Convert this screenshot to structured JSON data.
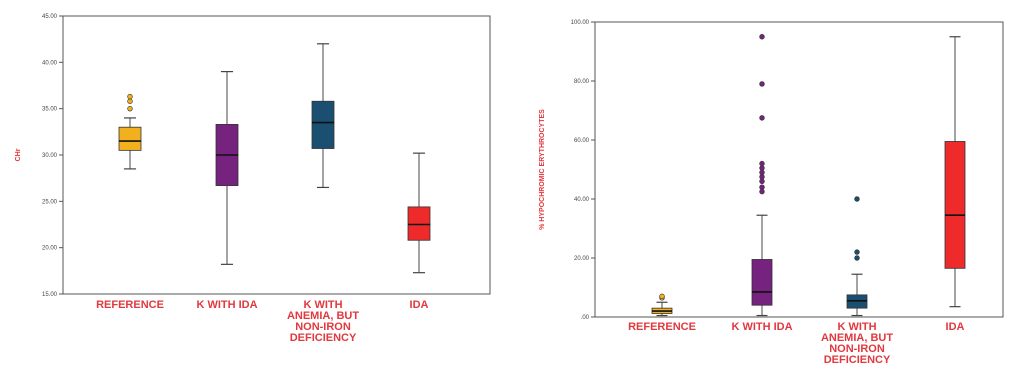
{
  "colors": {
    "reference": "#f2b01e",
    "k_with_ida": "#76227f",
    "k_anemia_non_iron": "#1b4f72",
    "ida": "#ee2a2a",
    "label": "#e0393e",
    "axis": "#555555"
  },
  "chart_data": [
    {
      "type": "box",
      "ylabel": "CHr",
      "ylim": [
        15,
        45
      ],
      "yticks": [
        "15.00",
        "20.00",
        "25.00",
        "30.00",
        "35.00",
        "40.00",
        "45.00"
      ],
      "categories": [
        "REFERENCE",
        "K WITH IDA",
        "K WITH ANEMIA, BUT NON-IRON DEFICIENCY",
        "IDA"
      ],
      "category_lines": [
        [
          "REFERENCE"
        ],
        [
          "K WITH IDA"
        ],
        [
          "K WITH",
          "ANEMIA, BUT",
          "NON-IRON",
          "DEFICIENCY"
        ],
        [
          "IDA"
        ]
      ],
      "boxes": [
        {
          "category": "REFERENCE",
          "color_key": "reference",
          "min": 28.5,
          "q1": 30.5,
          "median": 31.5,
          "q3": 33.0,
          "max": 34.0,
          "outliers": [
            35.0,
            35.8,
            36.3
          ]
        },
        {
          "category": "K WITH IDA",
          "color_key": "k_with_ida",
          "min": 18.2,
          "q1": 26.7,
          "median": 30.0,
          "q3": 33.3,
          "max": 39.0,
          "outliers": []
        },
        {
          "category": "K WITH ANEMIA, BUT NON-IRON DEFICIENCY",
          "color_key": "k_anemia_non_iron",
          "min": 26.5,
          "q1": 30.7,
          "median": 33.5,
          "q3": 35.8,
          "max": 42.0,
          "outliers": []
        },
        {
          "category": "IDA",
          "color_key": "ida",
          "min": 17.3,
          "q1": 20.8,
          "median": 22.5,
          "q3": 24.4,
          "max": 30.2,
          "outliers": []
        }
      ]
    },
    {
      "type": "box",
      "ylabel": "% HYPOCHROMIC ERYTHROCYTES",
      "ylim": [
        0,
        100
      ],
      "yticks": [
        ".00",
        "20.00",
        "40.00",
        "60.00",
        "80.00",
        "100.00"
      ],
      "categories": [
        "REFERENCE",
        "K WITH IDA",
        "K WITH ANEMIA, BUT NON-IRON DEFICIENCY",
        "IDA"
      ],
      "category_lines": [
        [
          "REFERENCE"
        ],
        [
          "K WITH IDA"
        ],
        [
          "K WITH",
          "ANEMIA, BUT",
          "NON-IRON",
          "DEFICIENCY"
        ],
        [
          "IDA"
        ]
      ],
      "boxes": [
        {
          "category": "REFERENCE",
          "color_key": "reference",
          "min": 0.5,
          "q1": 1.2,
          "median": 2.0,
          "q3": 3.0,
          "max": 5.0,
          "outliers": [
            6.5,
            7.0
          ]
        },
        {
          "category": "K WITH IDA",
          "color_key": "k_with_ida",
          "min": 0.5,
          "q1": 4.0,
          "median": 8.5,
          "q3": 19.5,
          "max": 34.5,
          "outliers": [
            42.5,
            44.0,
            46.0,
            47.5,
            49.0,
            50.5,
            52.0,
            67.5,
            79.0,
            95.0
          ]
        },
        {
          "category": "K WITH ANEMIA, BUT NON-IRON DEFICIENCY",
          "color_key": "k_anemia_non_iron",
          "min": 0.5,
          "q1": 3.0,
          "median": 5.5,
          "q3": 7.5,
          "max": 14.5,
          "outliers": [
            20.0,
            22.0,
            40.0
          ]
        },
        {
          "category": "IDA",
          "color_key": "ida",
          "min": 3.5,
          "q1": 16.5,
          "median": 34.5,
          "q3": 59.5,
          "max": 95.0,
          "outliers": []
        }
      ]
    }
  ]
}
